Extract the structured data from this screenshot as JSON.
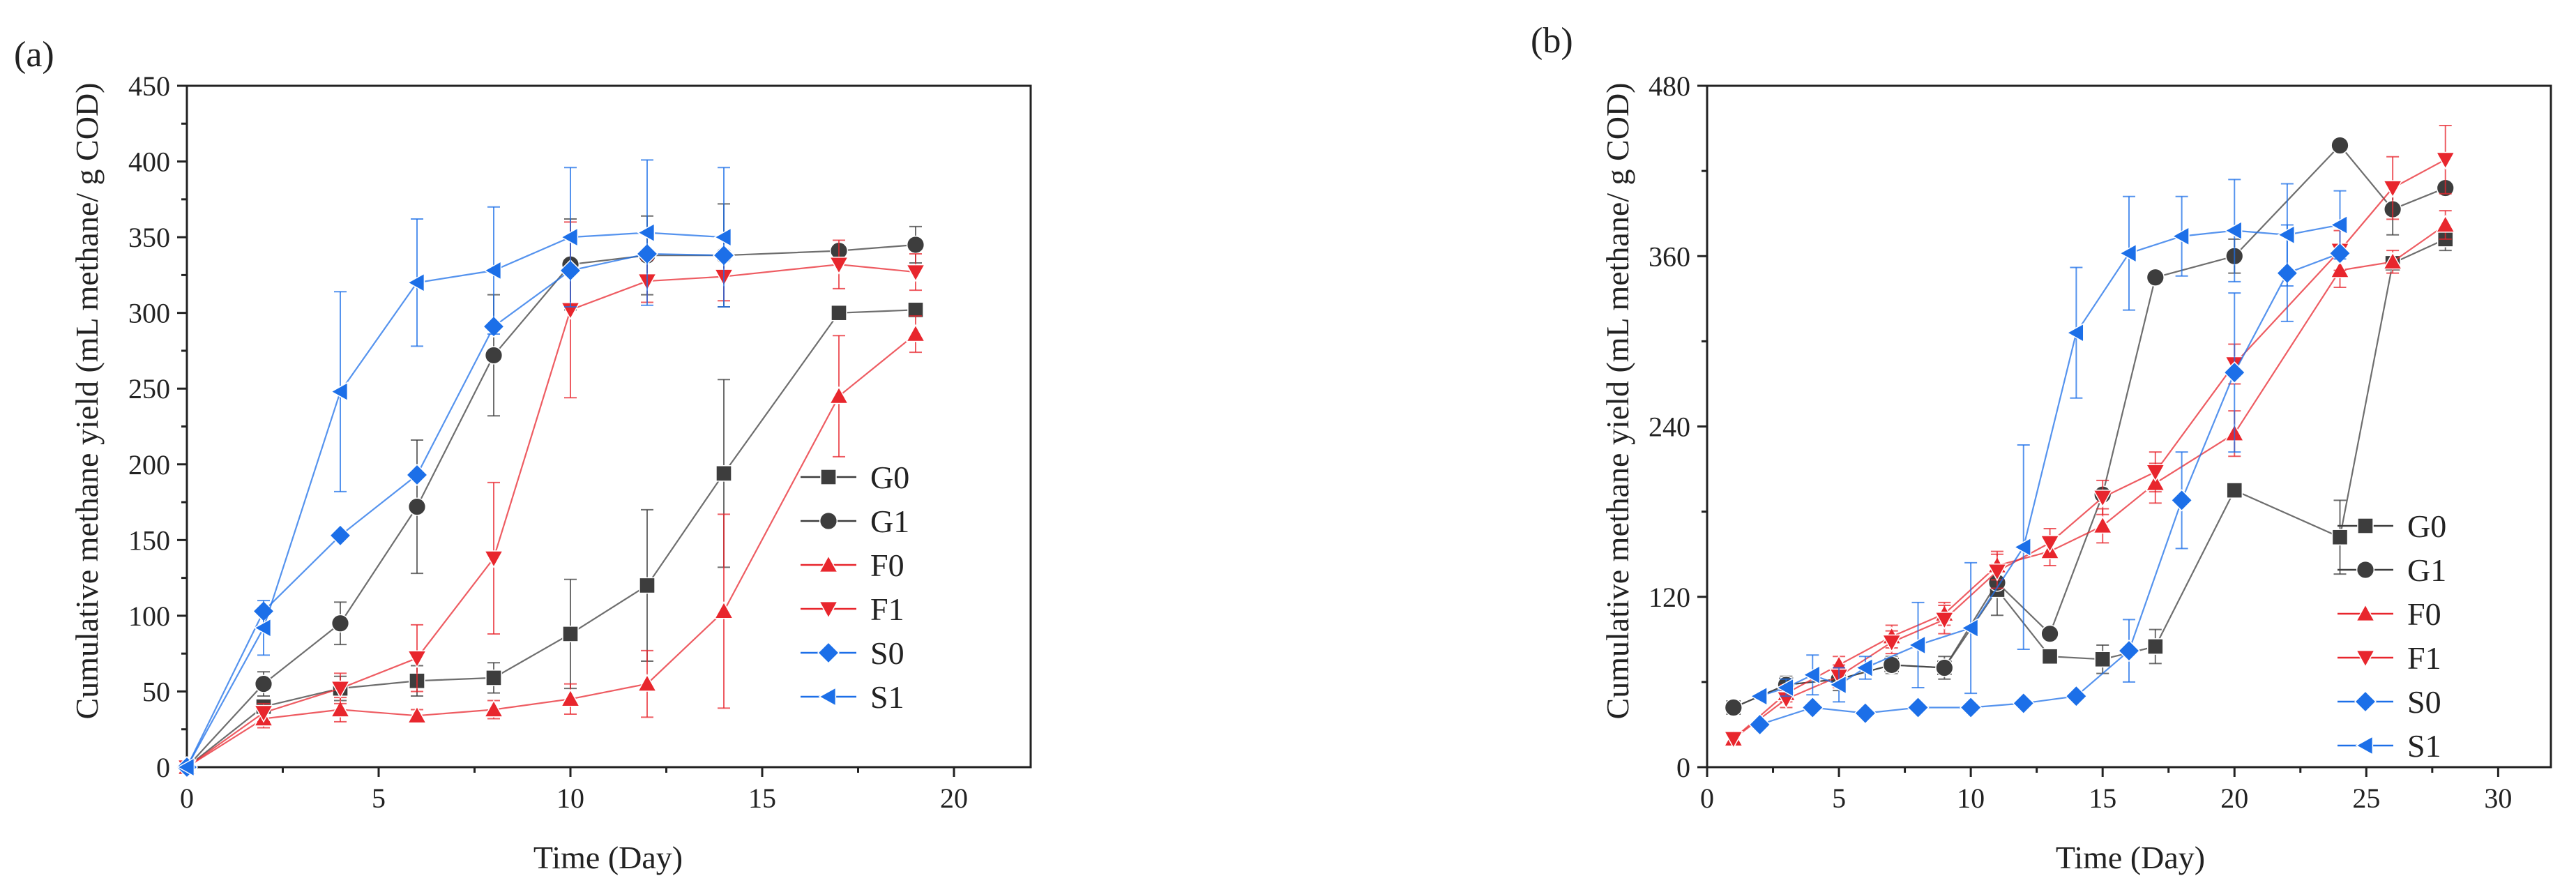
{
  "chart_data": [
    {
      "panel_label": "(a)",
      "type": "line",
      "xlabel": "Time (Day)",
      "ylabel": "Cumulative methane yield (mL methane/ g COD)",
      "xlim": [
        0,
        22
      ],
      "ylim": [
        0,
        450
      ],
      "xticks": [
        0,
        5,
        10,
        15,
        20
      ],
      "yticks": [
        0,
        50,
        100,
        150,
        200,
        250,
        300,
        350,
        400,
        450
      ],
      "legend": "right",
      "series": [
        {
          "name": "G0",
          "color": "#3d3d3d",
          "marker": "square",
          "x": [
            0,
            2,
            4,
            6,
            8,
            10,
            12,
            14,
            17,
            19
          ],
          "y": [
            0,
            40,
            52,
            57,
            59,
            88,
            120,
            194,
            300,
            302
          ],
          "err": [
            0,
            4,
            8,
            10,
            10,
            36,
            50,
            62,
            0,
            0
          ]
        },
        {
          "name": "G1",
          "color": "#3d3d3d",
          "marker": "circle",
          "x": [
            0,
            2,
            4,
            6,
            8,
            10,
            12,
            14,
            17,
            19
          ],
          "y": [
            0,
            55,
            95,
            172,
            272,
            332,
            338,
            338,
            341,
            345
          ],
          "err": [
            0,
            8,
            14,
            44,
            40,
            30,
            26,
            34,
            0,
            12
          ]
        },
        {
          "name": "F0",
          "color": "#e8262d",
          "marker": "triangle-up",
          "x": [
            0,
            2,
            4,
            6,
            8,
            10,
            12,
            14,
            17,
            19
          ],
          "y": [
            0,
            32,
            38,
            34,
            38,
            45,
            55,
            103,
            245,
            286
          ],
          "err": [
            0,
            6,
            8,
            4,
            6,
            10,
            22,
            64,
            40,
            12
          ]
        },
        {
          "name": "F1",
          "color": "#e8262d",
          "marker": "triangle-down",
          "x": [
            0,
            2,
            4,
            6,
            8,
            10,
            12,
            14,
            17,
            19
          ],
          "y": [
            0,
            36,
            52,
            72,
            138,
            302,
            321,
            324,
            332,
            327
          ],
          "err": [
            0,
            6,
            10,
            22,
            50,
            58,
            14,
            16,
            16,
            12
          ]
        },
        {
          "name": "S0",
          "color": "#1c6fe8",
          "marker": "diamond",
          "x": [
            0,
            2,
            4,
            6,
            8,
            10,
            12,
            14
          ],
          "y": [
            0,
            103,
            153,
            193,
            291,
            328,
            339,
            338
          ],
          "err": [
            0,
            0,
            0,
            0,
            0,
            0,
            0,
            0
          ]
        },
        {
          "name": "S1",
          "color": "#1c6fe8",
          "marker": "triangle-left",
          "x": [
            0,
            2,
            4,
            6,
            8,
            10,
            12,
            14
          ],
          "y": [
            0,
            92,
            248,
            320,
            328,
            350,
            353,
            350
          ],
          "err": [
            0,
            18,
            66,
            42,
            42,
            46,
            48,
            46
          ]
        }
      ]
    },
    {
      "panel_label": "(b)",
      "type": "line",
      "xlabel": "Time (Day)",
      "ylabel": "Cumulative methane yield (mL methane/ g COD)",
      "xlim": [
        0,
        32
      ],
      "ylim": [
        0,
        480
      ],
      "xticks": [
        0,
        5,
        10,
        15,
        20,
        25,
        30
      ],
      "yticks": [
        0,
        120,
        240,
        360,
        480
      ],
      "legend": "right",
      "series": [
        {
          "name": "G0",
          "color": "#3d3d3d",
          "marker": "square",
          "x": [
            1,
            3,
            5,
            7,
            9,
            11,
            13,
            15,
            17,
            20,
            24,
            26,
            28
          ],
          "y": [
            42,
            58,
            62,
            72,
            70,
            125,
            78,
            76,
            85,
            195,
            162,
            355,
            372
          ],
          "err": [
            0,
            6,
            8,
            6,
            8,
            18,
            0,
            10,
            12,
            0,
            26,
            0,
            8
          ]
        },
        {
          "name": "G1",
          "color": "#3d3d3d",
          "marker": "circle",
          "x": [
            1,
            3,
            5,
            7,
            9,
            11,
            13,
            15,
            17,
            20,
            24,
            26,
            28
          ],
          "y": [
            42,
            58,
            62,
            72,
            70,
            130,
            94,
            192,
            345,
            360,
            438,
            393,
            408
          ],
          "err": [
            0,
            0,
            0,
            0,
            0,
            0,
            0,
            0,
            0,
            12,
            0,
            18,
            0
          ]
        },
        {
          "name": "F0",
          "color": "#e8262d",
          "marker": "triangle-up",
          "x": [
            1,
            3,
            5,
            7,
            9,
            11,
            13,
            15,
            17,
            20,
            24,
            26,
            28
          ],
          "y": [
            20,
            52,
            72,
            92,
            108,
            142,
            152,
            170,
            200,
            235,
            350,
            356,
            382
          ],
          "err": [
            0,
            6,
            6,
            8,
            8,
            10,
            10,
            12,
            14,
            16,
            12,
            8,
            10
          ]
        },
        {
          "name": "F1",
          "color": "#e8262d",
          "marker": "triangle-down",
          "x": [
            1,
            3,
            5,
            7,
            9,
            11,
            13,
            15,
            17,
            20,
            24,
            26,
            28
          ],
          "y": [
            20,
            48,
            64,
            88,
            104,
            138,
            158,
            190,
            208,
            284,
            364,
            408,
            428
          ],
          "err": [
            0,
            6,
            8,
            8,
            10,
            12,
            10,
            12,
            14,
            14,
            14,
            22,
            24
          ]
        },
        {
          "name": "S0",
          "color": "#1c6fe8",
          "marker": "diamond",
          "x": [
            2,
            4,
            6,
            8,
            10,
            12,
            14,
            16,
            18,
            20,
            22,
            24
          ],
          "y": [
            30,
            42,
            38,
            42,
            42,
            45,
            50,
            82,
            188,
            278,
            348,
            362
          ],
          "err": [
            0,
            0,
            0,
            0,
            0,
            0,
            0,
            22,
            34,
            56,
            34,
            0
          ]
        },
        {
          "name": "S1",
          "color": "#1c6fe8",
          "marker": "triangle-left",
          "x": [
            2,
            3,
            4,
            5,
            6,
            8,
            10,
            12,
            14,
            16,
            18,
            20,
            22,
            24
          ],
          "y": [
            50,
            56,
            65,
            58,
            70,
            86,
            98,
            155,
            306,
            362,
            374,
            378,
            375,
            382
          ],
          "err": [
            0,
            6,
            14,
            12,
            8,
            30,
            46,
            72,
            46,
            40,
            28,
            36,
            36,
            24
          ]
        }
      ]
    }
  ]
}
